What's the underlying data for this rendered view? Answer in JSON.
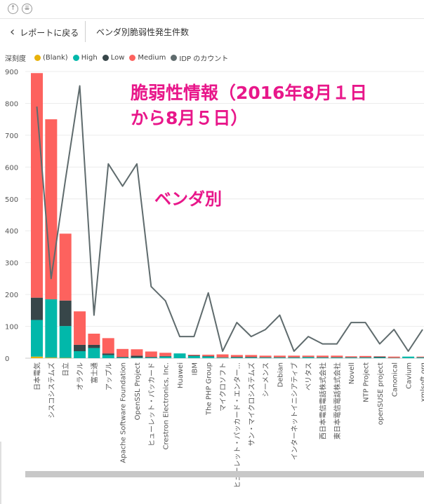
{
  "toolbar": {
    "up_icon": "up-arrow-icon",
    "down_icon": "down-double-arrow-icon"
  },
  "header": {
    "back_label": "レポートに戻る",
    "title": "ベンダ別脆弱性発生件数"
  },
  "colors": {
    "blank": "#e8b20c",
    "high": "#01b8aa",
    "low": "#374649",
    "medium": "#fd625e",
    "idp": "#5f6b6d",
    "annotation": "#e8178a"
  },
  "legend": {
    "title": "深刻度",
    "items": [
      {
        "label": "(Blank)",
        "color": "#e8b20c"
      },
      {
        "label": "High",
        "color": "#01b8aa"
      },
      {
        "label": "Low",
        "color": "#374649"
      },
      {
        "label": "Medium",
        "color": "#fd625e"
      },
      {
        "label": "IDP のカウント",
        "color": "#5f6b6d"
      }
    ]
  },
  "chart_data": {
    "type": "bar",
    "stacked": true,
    "ylim": [
      0,
      900
    ],
    "yticks": [
      0,
      100,
      200,
      300,
      400,
      500,
      600,
      700,
      800,
      900
    ],
    "grid": true,
    "legend_position": "top-left",
    "categories": [
      "日本電気",
      "シスコシステムズ",
      "日立",
      "オラクル",
      "富士通",
      "アップル",
      "Apache Software Foundation",
      "OpenSSL Project",
      "ヒューレット・パッカード",
      "Crestron Electronics, Inc.",
      "Huawei",
      "IBM",
      "The PHP Group",
      "マイクロソフト",
      "ヒューレット・パッカード・エンター...",
      "サン・マイクロシステムズ",
      "シーメンス",
      "Debian",
      "インターネットイニシアティブ",
      "ベリタス",
      "西日本電信電話株式会社",
      "東日本電信電話株式会社",
      "Novell",
      "NTP Project",
      "openSUSE project",
      "Canonical",
      "Cavium",
      "xmlsoft.org"
    ],
    "series": [
      {
        "name": "(Blank)",
        "values": [
          5,
          2,
          1,
          0,
          0,
          0,
          0,
          0,
          0,
          0,
          0,
          0,
          0,
          0,
          0,
          0,
          0,
          0,
          0,
          0,
          0,
          0,
          0,
          0,
          0,
          0,
          0,
          0
        ]
      },
      {
        "name": "High",
        "values": [
          115,
          183,
          100,
          22,
          32,
          10,
          2,
          2,
          2,
          5,
          15,
          7,
          5,
          2,
          2,
          2,
          2,
          2,
          2,
          3,
          2,
          2,
          2,
          2,
          2,
          1,
          5,
          2
        ]
      },
      {
        "name": "Low",
        "values": [
          70,
          0,
          80,
          20,
          10,
          5,
          2,
          6,
          2,
          2,
          0,
          2,
          2,
          0,
          2,
          2,
          1,
          1,
          1,
          1,
          1,
          1,
          1,
          1,
          3,
          0,
          0,
          1
        ]
      },
      {
        "name": "Medium",
        "values": [
          705,
          565,
          210,
          105,
          35,
          48,
          25,
          20,
          17,
          10,
          0,
          2,
          4,
          10,
          6,
          6,
          5,
          5,
          5,
          4,
          5,
          5,
          3,
          4,
          1,
          4,
          0,
          2
        ]
      },
      {
        "name": "IDP のカウント",
        "type": "line",
        "values": [
          790,
          250,
          560,
          855,
          135,
          610,
          540,
          610,
          225,
          180,
          68,
          68,
          205,
          22,
          112,
          68,
          90,
          135,
          22,
          68,
          45,
          45,
          112,
          112,
          45,
          90,
          22,
          90
        ]
      }
    ],
    "annotations": [
      "脆弱性情報（2016年8月１日",
      "から8月５日）",
      "ベンダ別"
    ]
  }
}
